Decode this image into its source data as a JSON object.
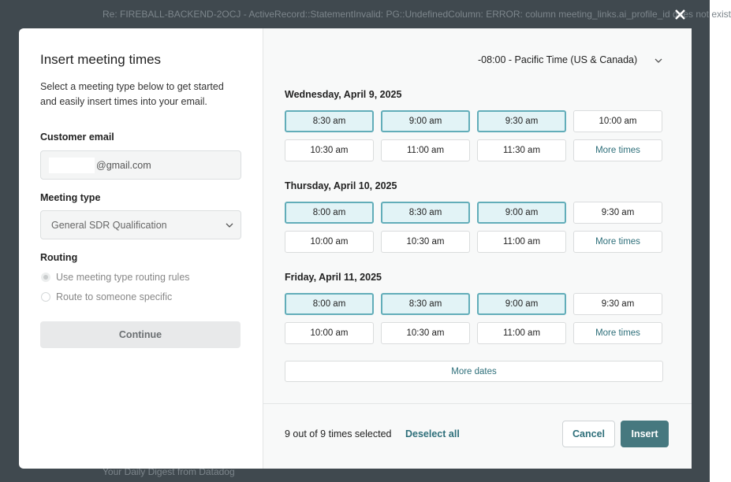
{
  "background": {
    "subject": "Re: FIREBALL-BACKEND-2OCJ - ActiveRecord::StatementInvalid: PG::UndefinedColumn: ERROR: column meeting_links.ai_profile_id does not exist",
    "footer_subject": "Your Daily Digest from Datadog"
  },
  "left": {
    "title": "Insert meeting times",
    "description": "Select a meeting type below to get started and easily insert times into your email.",
    "email_label": "Customer email",
    "email_value": "@gmail.com",
    "meeting_type_label": "Meeting type",
    "meeting_type_value": "General SDR Qualification",
    "routing_label": "Routing",
    "routing_options": [
      {
        "label": "Use meeting type routing rules",
        "checked": true
      },
      {
        "label": "Route to someone specific",
        "checked": false
      }
    ],
    "continue": "Continue"
  },
  "right": {
    "timezone": "-08:00 - Pacific Time (US & Canada)",
    "days": [
      {
        "date": "Wednesday, April 9, 2025",
        "slots": [
          {
            "label": "8:30 am",
            "selected": true
          },
          {
            "label": "9:00 am",
            "selected": true
          },
          {
            "label": "9:30 am",
            "selected": true
          },
          {
            "label": "10:00 am",
            "selected": false
          },
          {
            "label": "10:30 am",
            "selected": false
          },
          {
            "label": "11:00 am",
            "selected": false
          },
          {
            "label": "11:30 am",
            "selected": false
          }
        ],
        "more": "More times"
      },
      {
        "date": "Thursday, April 10, 2025",
        "slots": [
          {
            "label": "8:00 am",
            "selected": true
          },
          {
            "label": "8:30 am",
            "selected": true
          },
          {
            "label": "9:00 am",
            "selected": true
          },
          {
            "label": "9:30 am",
            "selected": false
          },
          {
            "label": "10:00 am",
            "selected": false
          },
          {
            "label": "10:30 am",
            "selected": false
          },
          {
            "label": "11:00 am",
            "selected": false
          }
        ],
        "more": "More times"
      },
      {
        "date": "Friday, April 11, 2025",
        "slots": [
          {
            "label": "8:00 am",
            "selected": true
          },
          {
            "label": "8:30 am",
            "selected": true
          },
          {
            "label": "9:00 am",
            "selected": true
          },
          {
            "label": "9:30 am",
            "selected": false
          },
          {
            "label": "10:00 am",
            "selected": false
          },
          {
            "label": "10:30 am",
            "selected": false
          },
          {
            "label": "11:00 am",
            "selected": false
          }
        ],
        "more": "More times"
      }
    ],
    "more_dates": "More dates",
    "footer": {
      "status": "9 out of 9 times selected",
      "deselect": "Deselect all",
      "cancel": "Cancel",
      "insert": "Insert"
    }
  }
}
